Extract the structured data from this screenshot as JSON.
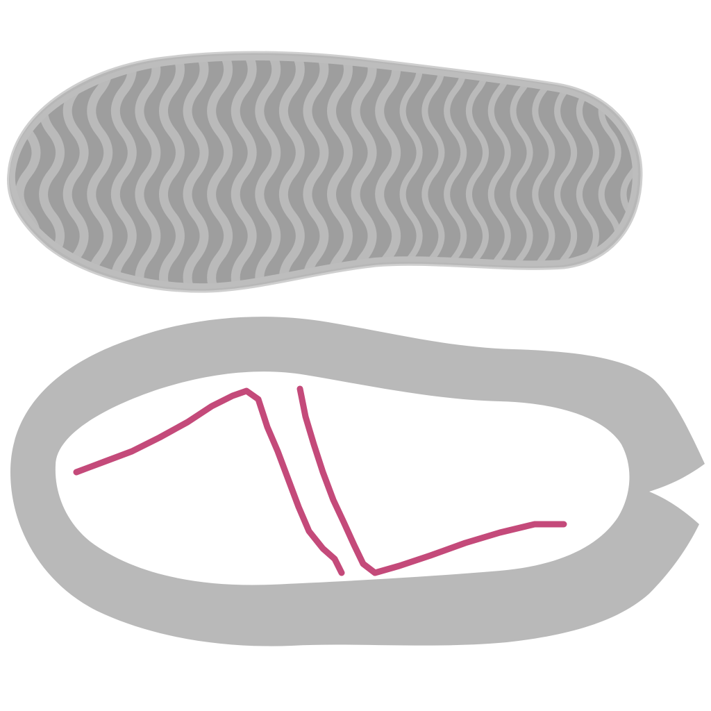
{
  "illustration": {
    "subject": "shoe-sole-and-upper-pattern",
    "components": [
      {
        "name": "outsole-tread-piece",
        "icon": "shoe-sole-icon"
      },
      {
        "name": "upper-pattern-piece",
        "icon": "shoe-upper-icon"
      },
      {
        "name": "stitch-line",
        "icon": "zigzag-seam-icon"
      }
    ],
    "colors": {
      "background": "#ffffff",
      "sole_fill": "#9e9e9e",
      "sole_rim": "#b7b7b7",
      "sole_outline": "#c4c4c4",
      "tread_ridge": "#bababa",
      "upper_fill": "#b9b9b9",
      "upper_hole": "#ffffff",
      "stitch": "#c44a7a"
    },
    "tread": {
      "style": "wavy-transverse-ridges",
      "ridge_count": 27
    }
  }
}
